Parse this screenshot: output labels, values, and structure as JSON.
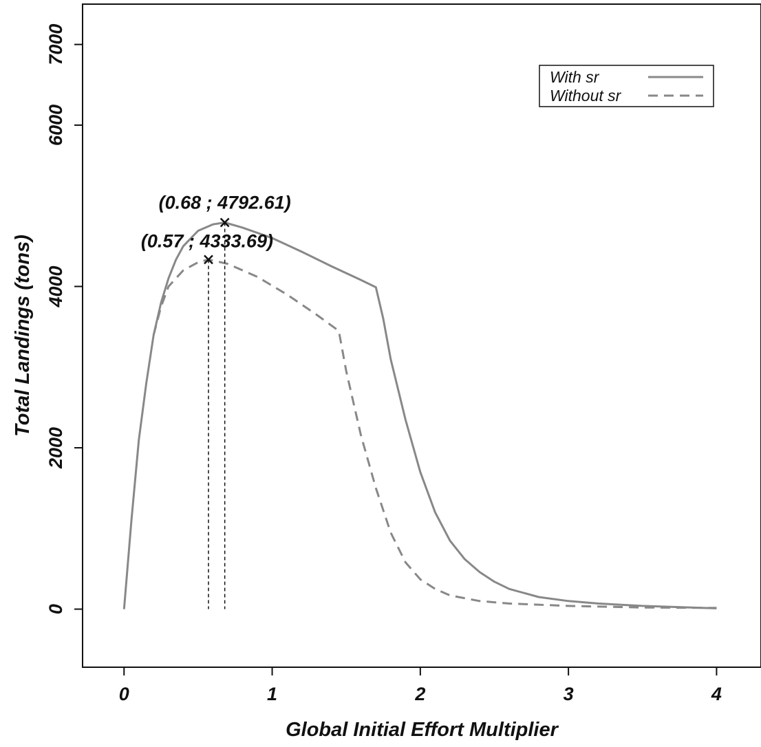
{
  "chart_data": {
    "type": "line",
    "xlabel": "Global Initial Effort Multiplier",
    "ylabel": "Total Landings (tons)",
    "xlim": [
      -0.28,
      4.3
    ],
    "ylim": [
      -720,
      7500
    ],
    "x_ticks": [
      0,
      1,
      2,
      3,
      4
    ],
    "y_ticks": [
      0,
      2000,
      4000,
      6000,
      7000
    ],
    "x_tick_labels": [
      "0",
      "1",
      "2",
      "3",
      "4"
    ],
    "y_tick_labels": [
      "0",
      "2000",
      "4000",
      "6000",
      "7000"
    ],
    "legend": {
      "position": "top-right"
    },
    "grid": false,
    "series": [
      {
        "name": "With sr",
        "style": "solid",
        "color": "#888888",
        "points": [
          [
            0,
            0
          ],
          [
            0.05,
            1100
          ],
          [
            0.1,
            2100
          ],
          [
            0.15,
            2800
          ],
          [
            0.2,
            3400
          ],
          [
            0.25,
            3800
          ],
          [
            0.3,
            4100
          ],
          [
            0.35,
            4330
          ],
          [
            0.4,
            4500
          ],
          [
            0.5,
            4690
          ],
          [
            0.6,
            4770
          ],
          [
            0.68,
            4792.61
          ],
          [
            0.8,
            4730
          ],
          [
            1.0,
            4600
          ],
          [
            1.2,
            4430
          ],
          [
            1.4,
            4250
          ],
          [
            1.6,
            4080
          ],
          [
            1.7,
            3990
          ],
          [
            1.75,
            3600
          ],
          [
            1.8,
            3100
          ],
          [
            1.9,
            2350
          ],
          [
            2.0,
            1700
          ],
          [
            2.1,
            1200
          ],
          [
            2.2,
            850
          ],
          [
            2.3,
            620
          ],
          [
            2.4,
            460
          ],
          [
            2.5,
            340
          ],
          [
            2.6,
            250
          ],
          [
            2.8,
            150
          ],
          [
            3.0,
            100
          ],
          [
            3.2,
            70
          ],
          [
            3.5,
            40
          ],
          [
            4.0,
            10
          ]
        ]
      },
      {
        "name": "Without sr",
        "style": "dashed",
        "color": "#888888",
        "points": [
          [
            0.2,
            3400
          ],
          [
            0.25,
            3750
          ],
          [
            0.3,
            4000
          ],
          [
            0.4,
            4200
          ],
          [
            0.5,
            4300
          ],
          [
            0.57,
            4333.69
          ],
          [
            0.7,
            4280
          ],
          [
            0.9,
            4120
          ],
          [
            1.1,
            3900
          ],
          [
            1.3,
            3650
          ],
          [
            1.45,
            3450
          ],
          [
            1.5,
            2950
          ],
          [
            1.6,
            2150
          ],
          [
            1.7,
            1500
          ],
          [
            1.8,
            950
          ],
          [
            1.9,
            580
          ],
          [
            2.0,
            370
          ],
          [
            2.1,
            250
          ],
          [
            2.2,
            170
          ],
          [
            2.4,
            100
          ],
          [
            2.6,
            70
          ],
          [
            3.0,
            40
          ],
          [
            3.5,
            20
          ],
          [
            4.0,
            15
          ]
        ]
      }
    ],
    "annotations": [
      {
        "label": "(0.68 ; 4792.61)",
        "x": 0.68,
        "y": 4792.61
      },
      {
        "label": "(0.57 ; 4333.69)",
        "x": 0.57,
        "y": 4333.69
      }
    ],
    "colors": {
      "line": "#888888",
      "marker": "#111111",
      "frame": "#111111"
    }
  }
}
